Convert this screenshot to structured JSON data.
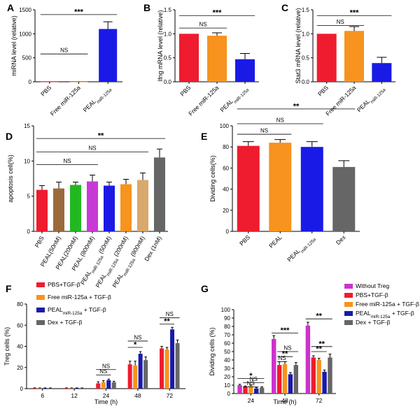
{
  "colors": {
    "red": "#ee1c2e",
    "orange": "#f7931e",
    "blue": "#1a1ae6",
    "green": "#22b822",
    "brown": "#9b6a3c",
    "purple": "#c83ad6",
    "tan": "#d9a86c",
    "gray": "#666666",
    "navy": "#1a1aa8",
    "magenta": "#cc33cc"
  },
  "chart_data": [
    {
      "id": "A",
      "panel_label": "A",
      "type": "bar",
      "ylabel": "miRNA level (relative)",
      "ylim": [
        0,
        1500
      ],
      "yticks": [
        0,
        500,
        1000,
        1500
      ],
      "categories": [
        "PBS",
        "Free miR-125a",
        "PEAL miR-125a"
      ],
      "cat_main": [
        "PBS",
        "Free miR-125a",
        "PEAL"
      ],
      "cat_sub": [
        "",
        "",
        "miR-125a"
      ],
      "values": [
        1,
        1,
        1100
      ],
      "errors": [
        0,
        0,
        150
      ],
      "colors": [
        "red",
        "orange",
        "blue"
      ],
      "sig": [
        {
          "label": "***",
          "from": 0,
          "to": 2,
          "level": 1400
        },
        {
          "label": "NS",
          "from": 0,
          "to": 1,
          "level": 580
        }
      ]
    },
    {
      "id": "B",
      "panel_label": "B",
      "type": "bar",
      "ylabel": "Ifng mRNA level (relative)",
      "ylim": [
        0,
        1.5
      ],
      "yticks": [
        "0.0",
        "0.5",
        "1.0",
        "1.5"
      ],
      "categories": [
        "PBS",
        "Free miR-125a",
        "PEAL miR-125a"
      ],
      "cat_main": [
        "PBS",
        "Free miR-125a",
        "PEAL"
      ],
      "cat_sub": [
        "",
        "",
        "miR-125a"
      ],
      "values": [
        1.0,
        0.96,
        0.47
      ],
      "errors": [
        0,
        0.06,
        0.12
      ],
      "colors": [
        "red",
        "orange",
        "blue"
      ],
      "sig": [
        {
          "label": "***",
          "from": 0,
          "to": 2,
          "level": 1.38
        },
        {
          "label": "NS",
          "from": 0,
          "to": 1,
          "level": 1.12
        }
      ]
    },
    {
      "id": "C",
      "panel_label": "C",
      "type": "bar",
      "ylabel": "Stat3 mRNA level (relative)",
      "ylim": [
        0,
        1.5
      ],
      "yticks": [
        "0.0",
        "0.5",
        "1.0",
        "1.5"
      ],
      "categories": [
        "PBS",
        "Free miR-125a",
        "PEAL miR-125a"
      ],
      "cat_main": [
        "PBS",
        "Free miR-125a",
        "PEAL"
      ],
      "cat_sub": [
        "",
        "",
        "miR-125a"
      ],
      "values": [
        1.0,
        1.06,
        0.39
      ],
      "errors": [
        0,
        0.09,
        0.12
      ],
      "colors": [
        "red",
        "orange",
        "blue"
      ],
      "sig": [
        {
          "label": "***",
          "from": 0,
          "to": 2,
          "level": 1.38
        },
        {
          "label": "NS",
          "from": 0,
          "to": 1,
          "level": 1.17
        }
      ]
    },
    {
      "id": "D",
      "panel_label": "D",
      "type": "bar",
      "ylabel": "apoptosis cell(%)",
      "ylim": [
        0,
        15
      ],
      "yticks": [
        0,
        5,
        10,
        15
      ],
      "categories": [
        "PBS",
        "PEAL(50nM)",
        "PEAL(200nM)",
        "PEAL (800nM)",
        "PEAL miR-125a (50nM)",
        "PEAL miR-125a (200nM)",
        "PEAL miR-125a (800nM)",
        "Dex (1nM)"
      ],
      "cat_main": [
        "PBS",
        "PEAL(50nM)",
        "PEAL(200nM)",
        "PEAL (800nM)",
        "PEAL",
        "PEAL",
        "PEAL",
        "Dex (1nM)"
      ],
      "cat_sub": [
        "",
        "",
        "",
        "",
        "miR-125a",
        "miR-125a",
        "miR-125a",
        ""
      ],
      "cat_tail": [
        "",
        "",
        "",
        "",
        " (50nM)",
        " (200nM)",
        " (800nM)",
        ""
      ],
      "values": [
        5.9,
        6.1,
        6.6,
        7.1,
        6.5,
        6.7,
        7.3,
        10.5
      ],
      "errors": [
        0.6,
        0.9,
        0.4,
        0.9,
        0.5,
        0.7,
        1.0,
        1.2
      ],
      "colors": [
        "red",
        "brown",
        "green",
        "purple",
        "blue",
        "orange",
        "tan",
        "gray"
      ],
      "sig": [
        {
          "label": "**",
          "from": 0,
          "to": 7,
          "level": 13.2
        },
        {
          "label": "NS",
          "from": 0,
          "to": 6,
          "level": 11.3
        },
        {
          "label": "NS",
          "from": 0,
          "to": 3,
          "level": 9.5
        }
      ]
    },
    {
      "id": "E",
      "panel_label": "E",
      "type": "bar",
      "ylabel": "Dividing cells(%)",
      "ylim": [
        0,
        100
      ],
      "yticks": [
        0,
        20,
        40,
        60,
        80,
        100
      ],
      "categories": [
        "PBS",
        "PEAL",
        "PEAL miR-125a",
        "Dex"
      ],
      "cat_main": [
        "PBS",
        "PEAL",
        "PEAL",
        "Dex"
      ],
      "cat_sub": [
        "",
        "",
        "miR-125a",
        ""
      ],
      "values": [
        81,
        84,
        80,
        61
      ],
      "errors": [
        4,
        3,
        5,
        6
      ],
      "colors": [
        "red",
        "orange",
        "blue",
        "gray"
      ],
      "sig": [
        {
          "label": "**",
          "from": 0,
          "to": 3,
          "level": 116
        },
        {
          "label": "NS",
          "from": 0,
          "to": 2,
          "level": 102
        },
        {
          "label": "NS",
          "from": 0,
          "to": 1,
          "level": 92
        }
      ]
    },
    {
      "id": "F",
      "panel_label": "F",
      "type": "bar",
      "ylabel": "Treg cells (%)",
      "xlabel": "Time (h)",
      "ylim": [
        0,
        80
      ],
      "yticks": [
        0,
        20,
        40,
        60,
        80
      ],
      "categories": [
        "6",
        "12",
        "24",
        "48",
        "72"
      ],
      "series": [
        {
          "name": "PBS+TGF-β",
          "leg_main": "PBS+TGF-β",
          "leg_sub": "",
          "leg_tail": "",
          "color": "red",
          "values": [
            0.5,
            0.5,
            5,
            23,
            38
          ],
          "errors": [
            0.2,
            0.2,
            1.5,
            3,
            2
          ]
        },
        {
          "name": "Free miR-125a + TGF-β",
          "leg_main": "Free miR-125a + TGF-β",
          "leg_sub": "",
          "leg_tail": "",
          "color": "orange",
          "values": [
            0.5,
            0.5,
            6,
            22,
            37
          ],
          "errors": [
            0.2,
            0.2,
            1.5,
            4,
            2
          ]
        },
        {
          "name": "PEAL miR-125a + TGF-β",
          "leg_main": "PEAL",
          "leg_sub": "miR-125a",
          "leg_tail": " + TGF-β",
          "color": "navy",
          "values": [
            0.5,
            0.5,
            8,
            33,
            56
          ],
          "errors": [
            0.2,
            0.2,
            1,
            2,
            2
          ]
        },
        {
          "name": "Dex + TGF-β",
          "leg_main": "Dex + TGF-β",
          "leg_sub": "",
          "leg_tail": "",
          "color": "gray",
          "values": [
            0.5,
            0.5,
            6,
            27,
            43
          ],
          "errors": [
            0.2,
            0.2,
            1,
            3,
            3
          ]
        }
      ],
      "sig": [
        {
          "label": "NS",
          "group": 2,
          "from": 0,
          "to": 3,
          "level": 18
        },
        {
          "label": "NS",
          "group": 2,
          "from": 0,
          "to": 2,
          "level": 13
        },
        {
          "label": "NS",
          "group": 3,
          "from": 0,
          "to": 3,
          "level": 45
        },
        {
          "label": "*",
          "group": 3,
          "from": 0,
          "to": 2,
          "level": 39
        },
        {
          "label": "NS",
          "group": 4,
          "from": 0,
          "to": 3,
          "level": 67
        },
        {
          "label": "**",
          "group": 4,
          "from": 0,
          "to": 2,
          "level": 61
        }
      ]
    },
    {
      "id": "G",
      "panel_label": "G",
      "type": "bar",
      "ylabel": "Dividing cells (%)",
      "xlabel": "Time (h)",
      "ylim": [
        0,
        100
      ],
      "yticks": [
        0,
        10,
        20,
        30,
        40,
        50,
        60,
        70,
        80,
        90,
        100
      ],
      "categories": [
        "24",
        "48",
        "72"
      ],
      "series": [
        {
          "name": "Without Treg",
          "leg_main": "Without Treg",
          "leg_sub": "",
          "leg_tail": "",
          "color": "magenta",
          "values": [
            10,
            65,
            81
          ],
          "errors": [
            1,
            4,
            4
          ]
        },
        {
          "name": "PBS+TGF-β",
          "leg_main": "PBS+TGF-β",
          "leg_sub": "",
          "leg_tail": "",
          "color": "red",
          "values": [
            8,
            34,
            43
          ],
          "errors": [
            1,
            4,
            2
          ]
        },
        {
          "name": "Free miR-125a + TGF-β",
          "leg_main": "Free miR-125a + TGF-β",
          "leg_sub": "",
          "leg_tail": "",
          "color": "orange",
          "values": [
            9,
            35,
            40
          ],
          "errors": [
            1,
            3,
            2
          ]
        },
        {
          "name": "PEAL miR-125a + TGF-β",
          "leg_main": "PEAL",
          "leg_sub": "miR-125a",
          "leg_tail": " + TGF-β",
          "color": "navy",
          "values": [
            6,
            23,
            26
          ],
          "errors": [
            1,
            2,
            2
          ]
        },
        {
          "name": "Dex + TGF-β",
          "leg_main": "Dex + TGF-β",
          "leg_sub": "",
          "leg_tail": "",
          "color": "gray",
          "values": [
            7,
            34,
            43
          ],
          "errors": [
            1,
            3,
            4
          ]
        }
      ],
      "sig": [
        {
          "label": "*",
          "group": 0,
          "from": 0,
          "to": 4,
          "level": 18
        },
        {
          "label": "NS",
          "group": 0,
          "from": 1,
          "to": 4,
          "level": 13
        },
        {
          "label": "NS",
          "group": 0,
          "from": 1,
          "to": 3,
          "level": 8
        },
        {
          "label": "***",
          "group": 1,
          "from": 0,
          "to": 4,
          "level": 72
        },
        {
          "label": "NS",
          "group": 1,
          "from": 1,
          "to": 4,
          "level": 50
        },
        {
          "label": "**",
          "group": 1,
          "from": 1,
          "to": 3,
          "level": 44
        },
        {
          "label": "NS",
          "group": 1,
          "from": 1,
          "to": 2,
          "level": 38
        },
        {
          "label": "**",
          "group": 2,
          "from": 0,
          "to": 4,
          "level": 89
        },
        {
          "label": "**",
          "group": 2,
          "from": 1,
          "to": 4,
          "level": 56
        },
        {
          "label": "**",
          "group": 2,
          "from": 1,
          "to": 3,
          "level": 50
        }
      ]
    }
  ]
}
